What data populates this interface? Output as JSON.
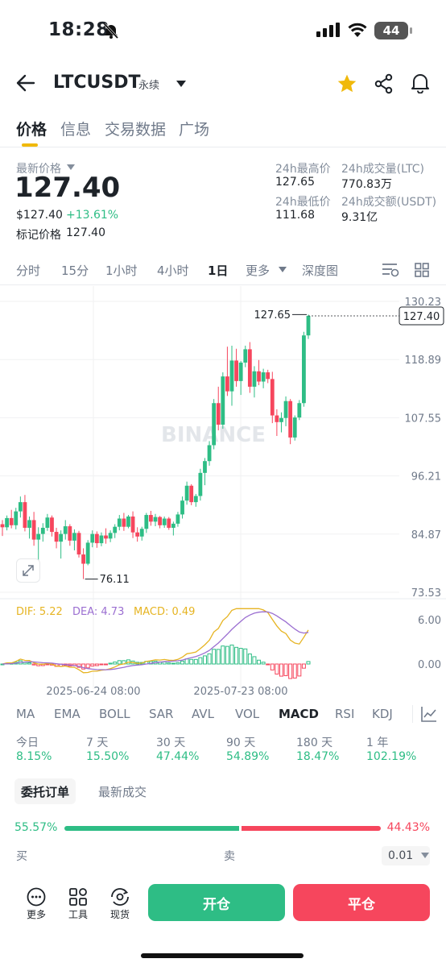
{
  "status_bar": {
    "time": "18:28",
    "battery": "44"
  },
  "header": {
    "symbol": "LTCUSDT",
    "contract_type": "永续"
  },
  "tabs": [
    "价格",
    "信息",
    "交易数据",
    "广场"
  ],
  "price": {
    "last_price_label": "最新价格",
    "last_price": "127.40",
    "usd_price": "$127.40",
    "change_pct": "+13.61%",
    "mark_price_label": "标记价格",
    "mark_price": "127.40"
  },
  "stats": {
    "high_label": "24h最高价",
    "high": "127.65",
    "vol_ltc_label": "24h成交量(LTC)",
    "vol_ltc": "770.83万",
    "low_label": "24h最低价",
    "low": "111.68",
    "vol_usdt_label": "24h成交额(USDT)",
    "vol_usdt": "9.31亿"
  },
  "intervals": [
    "分时",
    "15分",
    "1小时",
    "4小时",
    "1日",
    "更多",
    "深度图"
  ],
  "intervals_active": "1日",
  "chart_data": {
    "type": "candlestick",
    "y_ticks": [
      "130.23",
      "118.89",
      "107.55",
      "96.21",
      "84.87",
      "73.53"
    ],
    "ylim": [
      73.53,
      130.23
    ],
    "high_marker": "127.65",
    "low_marker": "76.11",
    "last_price_tag": "127.40",
    "x_ticks": [
      "2025-06-24 08:00",
      "2025-07-23 08:00"
    ],
    "watermark": "BINANCE",
    "candles": [
      [
        86.8,
        87.6,
        84.5,
        86.2
      ],
      [
        86.2,
        88.5,
        85.6,
        88.0
      ],
      [
        88.0,
        89.6,
        86.0,
        86.6
      ],
      [
        86.6,
        90.0,
        85.8,
        89.3
      ],
      [
        89.3,
        92.2,
        88.1,
        91.1
      ],
      [
        91.1,
        92.5,
        85.4,
        86.1
      ],
      [
        86.1,
        88.3,
        84.0,
        87.6
      ],
      [
        87.6,
        89.2,
        82.6,
        83.8
      ],
      [
        83.8,
        86.2,
        78.0,
        84.9
      ],
      [
        84.9,
        87.0,
        83.4,
        86.1
      ],
      [
        86.1,
        88.8,
        85.5,
        88.1
      ],
      [
        88.1,
        88.5,
        84.4,
        85.3
      ],
      [
        85.3,
        86.1,
        82.1,
        83.4
      ],
      [
        83.4,
        85.6,
        80.1,
        84.9
      ],
      [
        84.9,
        87.6,
        83.8,
        86.4
      ],
      [
        86.4,
        86.8,
        82.6,
        83.6
      ],
      [
        83.6,
        85.8,
        81.7,
        85.1
      ],
      [
        85.1,
        85.5,
        80.3,
        80.9
      ],
      [
        80.9,
        82.1,
        76.11,
        79.1
      ],
      [
        79.1,
        83.7,
        78.8,
        83.2
      ],
      [
        83.2,
        85.6,
        82.3,
        84.9
      ],
      [
        84.9,
        85.4,
        82.2,
        83.1
      ],
      [
        83.1,
        85.2,
        82.5,
        84.6
      ],
      [
        84.6,
        86.0,
        83.0,
        84.0
      ],
      [
        84.0,
        85.6,
        83.3,
        85.1
      ],
      [
        85.1,
        86.8,
        84.1,
        86.3
      ],
      [
        86.3,
        88.6,
        85.6,
        87.9
      ],
      [
        87.9,
        89.0,
        85.5,
        86.3
      ],
      [
        86.3,
        88.6,
        86.0,
        88.3
      ],
      [
        88.3,
        89.3,
        84.1,
        85.2
      ],
      [
        85.2,
        86.2,
        83.4,
        84.4
      ],
      [
        84.4,
        86.3,
        83.6,
        85.9
      ],
      [
        85.9,
        89.0,
        85.1,
        88.6
      ],
      [
        88.6,
        89.4,
        86.5,
        87.3
      ],
      [
        87.3,
        88.8,
        86.4,
        88.2
      ],
      [
        88.2,
        88.4,
        86.0,
        86.6
      ],
      [
        86.6,
        88.3,
        86.1,
        87.9
      ],
      [
        87.9,
        88.2,
        85.7,
        86.1
      ],
      [
        86.1,
        87.3,
        84.6,
        86.9
      ],
      [
        86.9,
        89.2,
        86.3,
        88.7
      ],
      [
        88.7,
        92.2,
        87.9,
        91.4
      ],
      [
        91.4,
        95.1,
        90.6,
        94.3
      ],
      [
        94.3,
        94.6,
        90.5,
        91.1
      ],
      [
        91.1,
        92.7,
        90.2,
        92.3
      ],
      [
        92.3,
        97.6,
        91.4,
        96.8
      ],
      [
        96.8,
        99.7,
        94.4,
        99.1
      ],
      [
        99.1,
        103.0,
        98.2,
        102.2
      ],
      [
        102.2,
        111.2,
        101.4,
        110.4
      ],
      [
        110.4,
        113.6,
        105.1,
        106.2
      ],
      [
        106.2,
        116.4,
        105.4,
        115.6
      ],
      [
        115.6,
        121.4,
        111.8,
        112.7
      ],
      [
        112.7,
        121.6,
        109.9,
        118.7
      ],
      [
        118.7,
        121.0,
        113.6,
        114.7
      ],
      [
        114.7,
        118.6,
        112.0,
        118.3
      ],
      [
        118.3,
        121.6,
        117.4,
        120.9
      ],
      [
        120.9,
        122.3,
        112.4,
        113.6
      ],
      [
        113.6,
        117.6,
        111.5,
        116.6
      ],
      [
        116.6,
        118.8,
        113.9,
        114.6
      ],
      [
        114.6,
        117.1,
        113.3,
        116.4
      ],
      [
        116.4,
        116.9,
        114.3,
        115.1
      ],
      [
        115.1,
        116.5,
        106.5,
        108.0
      ],
      [
        108.0,
        109.2,
        104.0,
        106.7
      ],
      [
        106.7,
        108.6,
        104.7,
        107.5
      ],
      [
        107.5,
        111.7,
        105.9,
        110.8
      ],
      [
        110.8,
        111.2,
        102.4,
        103.7
      ],
      [
        103.7,
        108.0,
        103.1,
        107.6
      ],
      [
        107.6,
        111.0,
        107.1,
        110.4
      ],
      [
        110.4,
        124.3,
        109.7,
        123.6
      ],
      [
        123.6,
        127.65,
        122.9,
        127.4
      ]
    ],
    "macd": {
      "dif": "5.22",
      "dea": "4.73",
      "macd": "0.49",
      "y_ticks": [
        "6.00",
        "0.00"
      ]
    }
  },
  "indicators": [
    "MA",
    "EMA",
    "BOLL",
    "SAR",
    "AVL",
    "VOL",
    "MACD",
    "RSI",
    "KDJ"
  ],
  "indicators_active": "MACD",
  "performance": [
    {
      "label": "今日",
      "value": "8.15%"
    },
    {
      "label": "7 天",
      "value": "15.50%"
    },
    {
      "label": "30 天",
      "value": "47.44%"
    },
    {
      "label": "90 天",
      "value": "54.89%"
    },
    {
      "label": "180 天",
      "value": "18.47%"
    },
    {
      "label": "1 年",
      "value": "102.19%"
    }
  ],
  "orderbook": {
    "tab_orders": "委托订单",
    "tab_trades": "最新成交",
    "buy_ratio": "55.57%",
    "sell_ratio": "44.43%",
    "buy_label": "买",
    "sell_label": "卖",
    "precision": "0.01"
  },
  "bottom": {
    "more": "更多",
    "tools": "工具",
    "spot": "现货",
    "open": "开仓",
    "close": "平仓"
  }
}
